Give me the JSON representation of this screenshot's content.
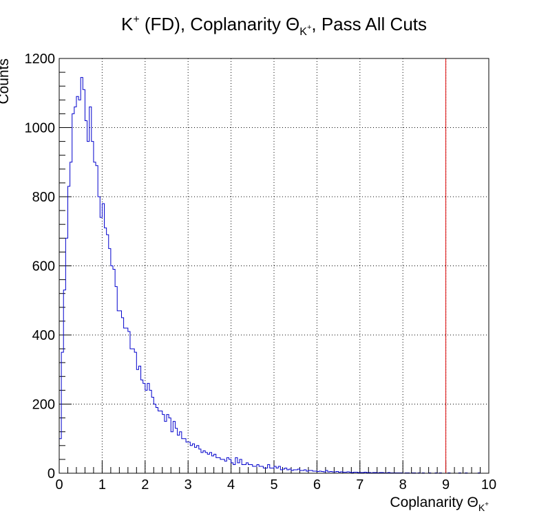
{
  "chart_data": {
    "type": "histogram",
    "title": {
      "prefix": "K",
      "prefix_sup": "+",
      "middle": " (FD), Coplanarity ",
      "symbol": "Θ",
      "symbol_sub": "K",
      "symbol_sub_sup": "+",
      "suffix": ", Pass All Cuts"
    },
    "xlabel": {
      "text": "Coplanarity  ",
      "symbol": "Θ",
      "symbol_sub": "K",
      "symbol_sub_sup": "+"
    },
    "ylabel": "Counts",
    "xlim": [
      0,
      10
    ],
    "ylim": [
      0,
      1200
    ],
    "x_ticks": [
      "0",
      "1",
      "2",
      "3",
      "4",
      "5",
      "6",
      "7",
      "8",
      "9",
      "10"
    ],
    "y_ticks": [
      "0",
      "200",
      "400",
      "600",
      "800",
      "1000",
      "1200"
    ],
    "grid": true,
    "line_color": "#0000cc",
    "cut_line": {
      "x": 9.0,
      "color": "#dd0000"
    },
    "bin_width": 0.05,
    "bin_start": 0,
    "counts": [
      100,
      350,
      530,
      680,
      830,
      900,
      1040,
      1060,
      1090,
      1080,
      1145,
      1110,
      1020,
      960,
      1060,
      960,
      900,
      890,
      800,
      740,
      780,
      710,
      690,
      650,
      600,
      590,
      540,
      470,
      470,
      450,
      420,
      420,
      410,
      360,
      360,
      350,
      300,
      310,
      270,
      260,
      240,
      260,
      240,
      220,
      200,
      190,
      180,
      180,
      170,
      150,
      170,
      160,
      120,
      150,
      130,
      110,
      120,
      100,
      100,
      90,
      90,
      80,
      85,
      75,
      80,
      70,
      60,
      65,
      60,
      55,
      60,
      50,
      55,
      45,
      45,
      40,
      40,
      35,
      45,
      40,
      30,
      25,
      45,
      30,
      40,
      25,
      25,
      30,
      25,
      25,
      20,
      20,
      25,
      20,
      20,
      15,
      15,
      25,
      15,
      15,
      20,
      15,
      20,
      10,
      12,
      15,
      10,
      12,
      8,
      10,
      10,
      12,
      8,
      8,
      10,
      6,
      8,
      8,
      6,
      6,
      5,
      6,
      5,
      4,
      8,
      4,
      5,
      4,
      4,
      5,
      3,
      4,
      3,
      3,
      4,
      3,
      2,
      3,
      3,
      2,
      2,
      2,
      3,
      2,
      2,
      1,
      2,
      2,
      1,
      2,
      2,
      1,
      1,
      2,
      1,
      1,
      1,
      1,
      1,
      1,
      0,
      1,
      1,
      0,
      1,
      1,
      0,
      1,
      0,
      1,
      0,
      0,
      1,
      0,
      0,
      1,
      0,
      1,
      0,
      0,
      0,
      1,
      0,
      0,
      0,
      0,
      1,
      0,
      0,
      1,
      0,
      0,
      0,
      0,
      0,
      1
    ]
  }
}
